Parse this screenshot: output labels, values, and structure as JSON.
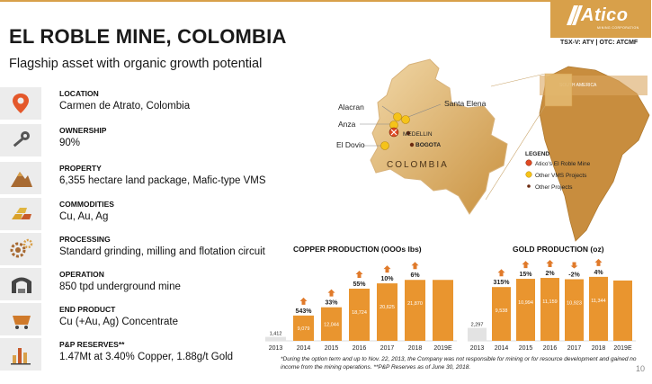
{
  "header": {
    "title": "EL ROBLE MINE, COLOMBIA",
    "subtitle": "Flagship asset with organic growth potential",
    "logo_text": "Atico",
    "logo_sub": "MINING CORPORATION",
    "ticker": "TSX-V: ATY  |  OTC: ATCMF"
  },
  "facts": [
    {
      "label": "LOCATION",
      "value": "Carmen de Atrato, Colombia",
      "icon": "map-pin-icon"
    },
    {
      "label": "OWNERSHIP",
      "value": "90%",
      "icon": "key-icon"
    },
    {
      "label": "PROPERTY",
      "value": "6,355 hectare land package, Mafic-type VMS",
      "icon": "mountain-icon"
    },
    {
      "label": "COMMODITIES",
      "value": "Cu, Au, Ag",
      "icon": "gold-bars-icon"
    },
    {
      "label": "PROCESSING",
      "value": "Standard grinding, milling and flotation circuit",
      "icon": "gears-icon"
    },
    {
      "label": "OPERATION",
      "value": "850 tpd underground mine",
      "icon": "mine-tunnel-icon"
    },
    {
      "label": "END PRODUCT",
      "value": "Cu (+Au, Ag) Concentrate",
      "icon": "cart-icon"
    },
    {
      "label": "P&P RESERVES**",
      "value": "1.47Mt at 3.40% Copper, 1.88g/t Gold",
      "icon": "bar-chart-icon"
    }
  ],
  "map": {
    "country": "COLOMBIA",
    "continent": "SOUTH AMERICA",
    "places": [
      "Alacran",
      "Santa Elena",
      "Anza",
      "MEDELLIN",
      "BOGOTA",
      "El Dovio"
    ],
    "legend_title": "LEGEND",
    "legend": [
      "Atico's El Roble Mine",
      "Other VMS Projects",
      "Other Projects"
    ]
  },
  "chart_data": [
    {
      "type": "bar",
      "title": "COPPER PRODUCTION (OOOs lbs)",
      "categories": [
        "2013",
        "2014",
        "2015",
        "2016",
        "2017",
        "2018",
        "2019E"
      ],
      "values": [
        1412,
        9079,
        12044,
        18724,
        20625,
        21870,
        21870
      ],
      "labels": [
        "1,412",
        "9,079",
        "12,044",
        "18,724",
        "20,625",
        "21,870",
        ""
      ],
      "growth": [
        "",
        "543%",
        "33%",
        "55%",
        "10%",
        "6%",
        ""
      ],
      "ylim": [
        0,
        25500
      ],
      "colors": {
        "base": "#e3e3e3",
        "bar": "#e9952f",
        "arrow": "#e07a2a"
      }
    },
    {
      "type": "bar",
      "title": "GOLD PRODUCTION (oz)",
      "categories": [
        "2013",
        "2014",
        "2015",
        "2016",
        "2017",
        "2018",
        "2019E"
      ],
      "values": [
        2297,
        9538,
        10994,
        11159,
        10923,
        11344,
        10700
      ],
      "labels": [
        "2,297",
        "9,538",
        "10,994",
        "11,159",
        "10,923",
        "11,344",
        ""
      ],
      "growth": [
        "",
        "315%",
        "15%",
        "2%",
        "-2%",
        "4%",
        ""
      ],
      "ylim": [
        0,
        12600
      ],
      "colors": {
        "base": "#e3e3e3",
        "bar": "#e9952f",
        "arrow": "#e07a2a"
      }
    }
  ],
  "footnote": "*During the option term and up to Nov. 22, 2013, the Company was not responsible for mining or for resource development and gained no income from the mining operations. **P&P Reserves as of June 30, 2018.",
  "page_number": "10"
}
